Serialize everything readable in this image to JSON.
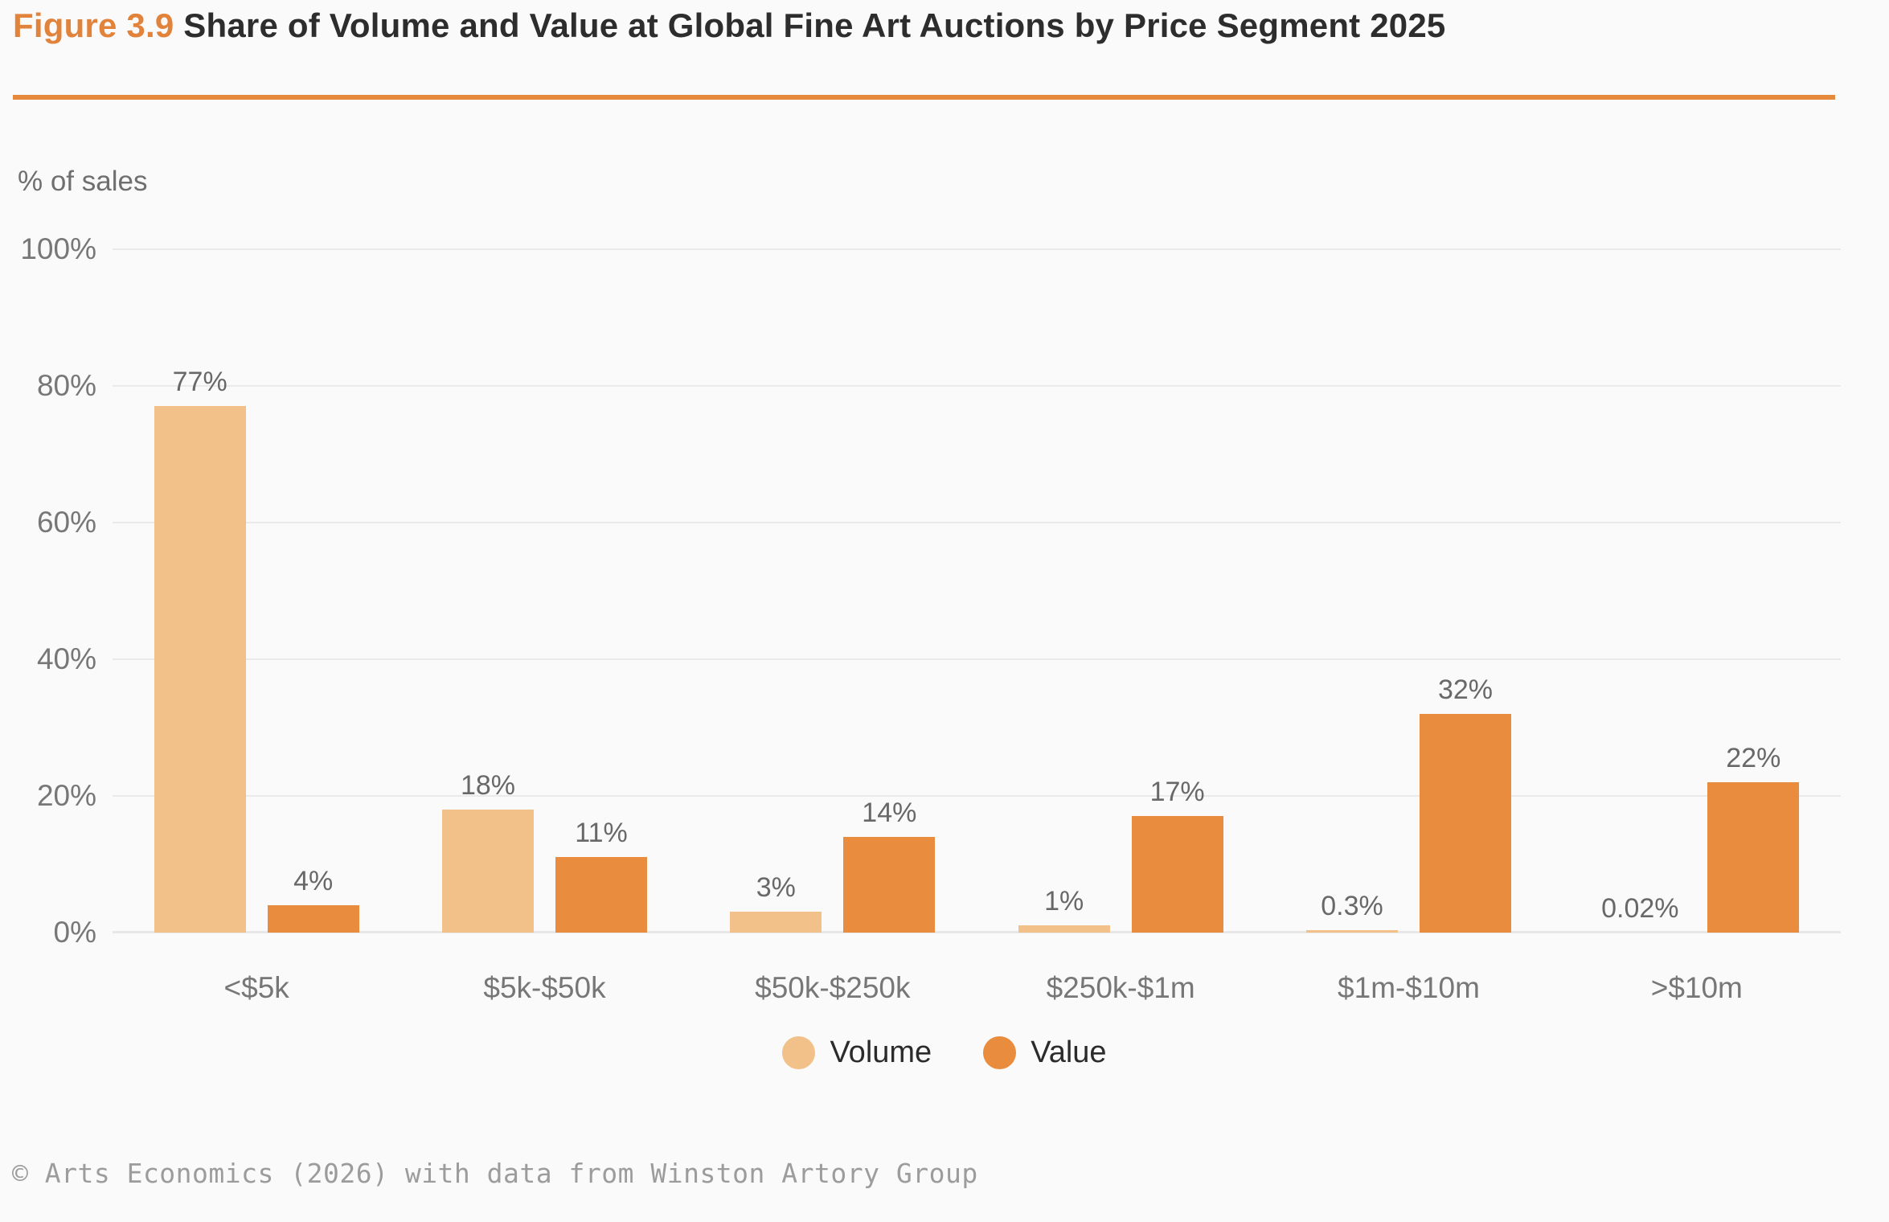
{
  "header": {
    "figure_label": "Figure 3.9",
    "title": "Share of Volume and Value at Global Fine Art Auctions by Price Segment 2025"
  },
  "chart_data": {
    "type": "bar",
    "title": "Share of Volume and Value at Global Fine Art Auctions by Price Segment 2025",
    "ylabel": "% of sales",
    "ylim": [
      0,
      100
    ],
    "yticks": [
      0,
      20,
      40,
      60,
      80,
      100
    ],
    "ytick_labels": [
      "0%",
      "20%",
      "40%",
      "60%",
      "80%",
      "100%"
    ],
    "grid": true,
    "legend_position": "bottom-center",
    "categories": [
      "<$5k",
      "$5k-$50k",
      "$50k-$250k",
      "$250k-$1m",
      "$1m-$10m",
      ">$10m"
    ],
    "series": [
      {
        "name": "Volume",
        "color": "#F1C189",
        "values": [
          77,
          18,
          3,
          1,
          0.3,
          0.02
        ],
        "labels": [
          "77%",
          "18%",
          "3%",
          "1%",
          "0.3%",
          "0.02%"
        ]
      },
      {
        "name": "Value",
        "color": "#E98C3E",
        "values": [
          4,
          11,
          14,
          17,
          32,
          22
        ],
        "labels": [
          "4%",
          "11%",
          "14%",
          "17%",
          "32%",
          "22%"
        ]
      }
    ]
  },
  "colors": {
    "accent_orange": "#E5893C",
    "volume_bar": "#F1C189",
    "value_bar": "#E98C3E",
    "gridline": "#ECEAE8",
    "text_dark": "#2D2D2D",
    "text_gray": "#777777",
    "background": "#FBFAFA"
  },
  "footer": {
    "credit": "© Arts Economics (2026) with data from Winston Artory Group"
  }
}
